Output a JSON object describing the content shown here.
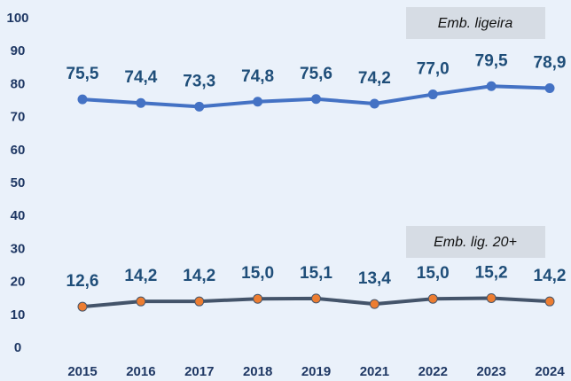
{
  "chart_data": {
    "type": "line",
    "categories": [
      "2015",
      "2016",
      "2017",
      "2018",
      "2019",
      "2021",
      "2022",
      "2023",
      "2024"
    ],
    "series": [
      {
        "name": "Emb. ligeira",
        "color": "#4472c4",
        "marker_color": "#4472c4",
        "values": [
          75.5,
          74.4,
          73.3,
          74.8,
          75.6,
          74.2,
          77.0,
          79.5,
          78.9
        ],
        "value_labels": [
          "75,5",
          "74,4",
          "73,3",
          "74,8",
          "75,6",
          "74,2",
          "77,0",
          "79,5",
          "78,9"
        ]
      },
      {
        "name": "Emb. lig. 20+",
        "color": "#44546a",
        "marker_color": "#ed7d31",
        "values": [
          12.6,
          14.2,
          14.2,
          15.0,
          15.1,
          13.4,
          15.0,
          15.2,
          14.2
        ],
        "value_labels": [
          "12,6",
          "14,2",
          "14,2",
          "15,0",
          "15,1",
          "13,4",
          "15,0",
          "15,2",
          "14,2"
        ]
      }
    ],
    "ylim": [
      0,
      100
    ],
    "yticks": [
      0,
      10,
      20,
      30,
      40,
      50,
      60,
      70,
      80,
      90,
      100
    ],
    "grid": false
  }
}
